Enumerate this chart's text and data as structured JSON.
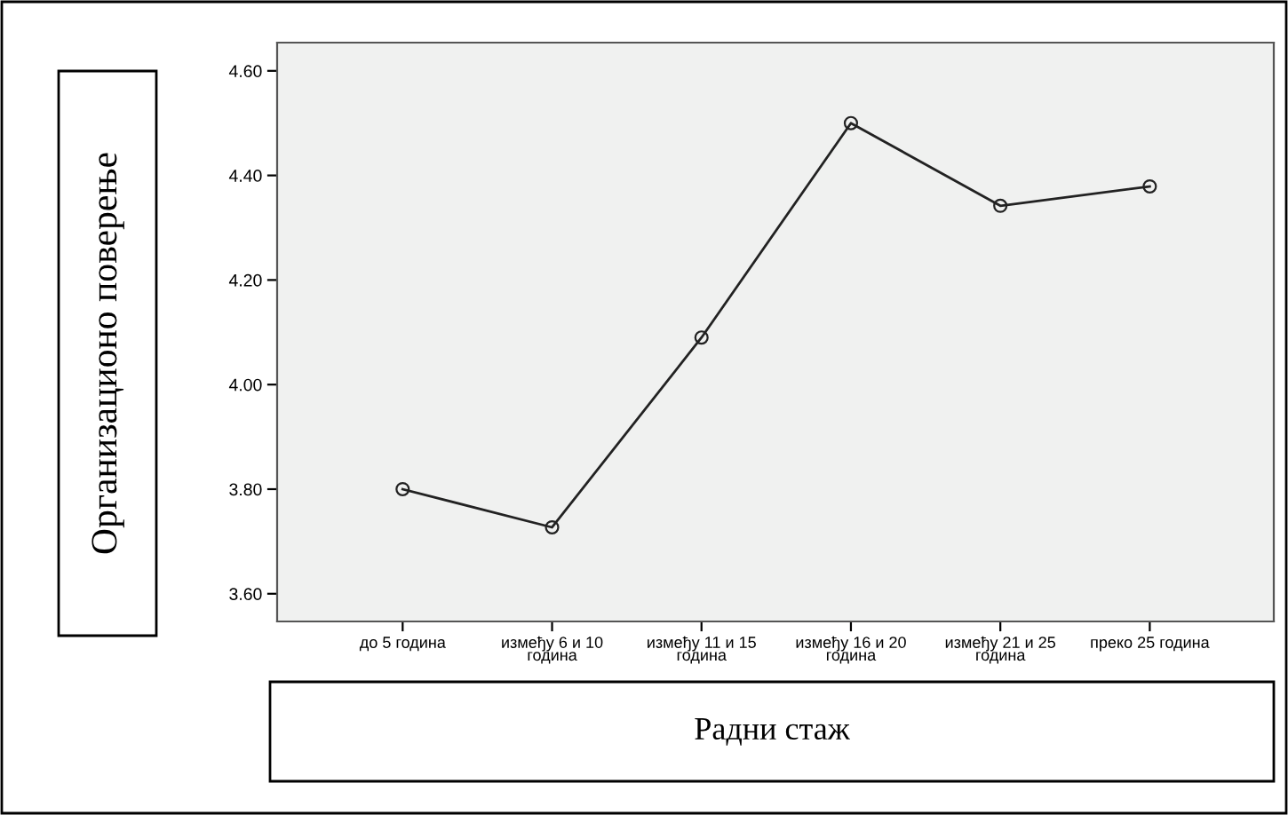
{
  "chart_data": {
    "type": "line",
    "xlabel": "Радни стаж",
    "ylabel": "Организационо поверење",
    "categories": [
      "до 5 година",
      "између 6 и 10\nгодина",
      "између 11 и 15\nгодина",
      "између 16 и 20\nгодина",
      "између 21 и 25\nгодина",
      "преко 25 година"
    ],
    "series": [
      {
        "color": "#222222",
        "values": [
          3.8,
          3.727,
          4.09,
          4.5,
          4.342,
          4.379
        ]
      }
    ],
    "ylim": [
      3.547,
      4.654
    ],
    "yticks": [
      {
        "value": 3.6,
        "label": "3.60"
      },
      {
        "value": 3.8,
        "label": "3.80"
      },
      {
        "value": 4.0,
        "label": "4.00"
      },
      {
        "value": 4.2,
        "label": "4.20"
      },
      {
        "value": 4.4,
        "label": "4.40"
      },
      {
        "value": 4.6,
        "label": "4.60"
      }
    ],
    "marker": "circle",
    "line_style": "solid",
    "grid": false,
    "legend": false
  }
}
